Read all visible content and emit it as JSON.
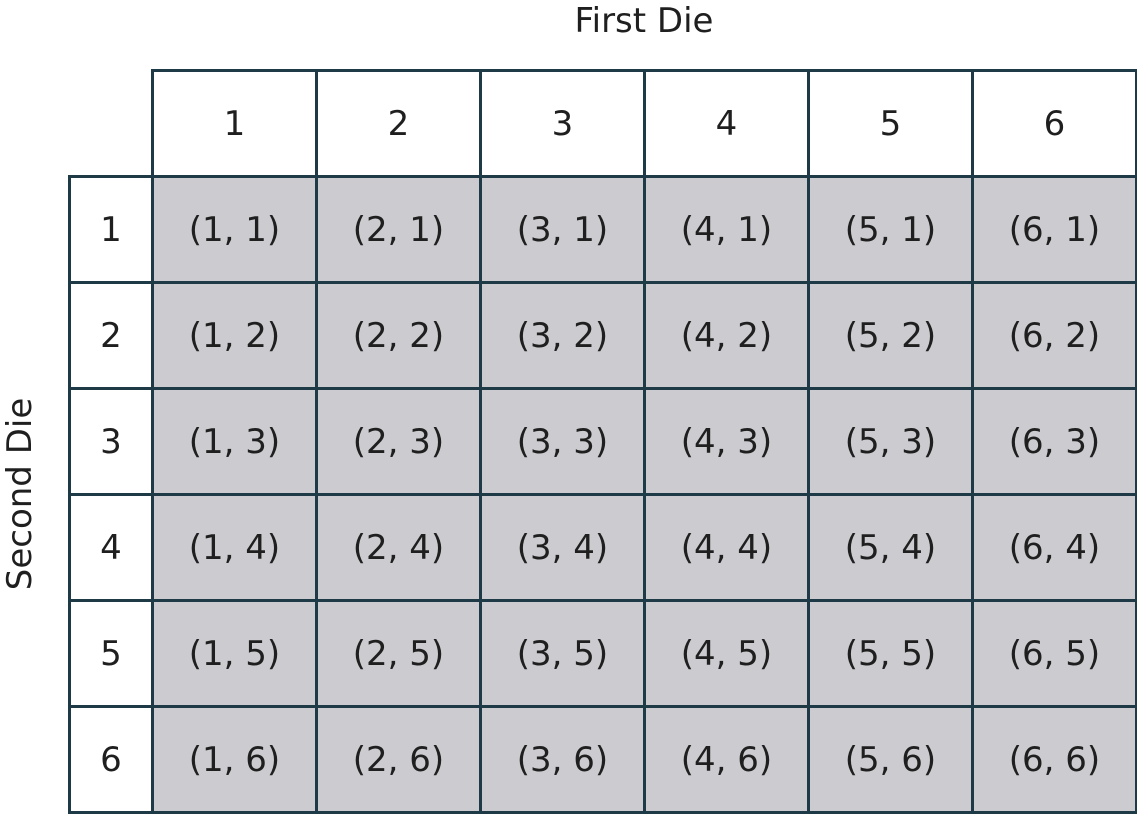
{
  "first_die_label": "First Die",
  "second_die_label": "Second Die",
  "column_headers": [
    "1",
    "2",
    "3",
    "4",
    "5",
    "6"
  ],
  "row_headers": [
    "1",
    "2",
    "3",
    "4",
    "5",
    "6"
  ],
  "outcomes": [
    [
      "(1, 1)",
      "(2, 1)",
      "(3, 1)",
      "(4, 1)",
      "(5, 1)",
      "(6, 1)"
    ],
    [
      "(1, 2)",
      "(2, 2)",
      "(3, 2)",
      "(4, 2)",
      "(5, 2)",
      "(6, 2)"
    ],
    [
      "(1, 3)",
      "(2, 3)",
      "(3, 3)",
      "(4, 3)",
      "(5, 3)",
      "(6, 3)"
    ],
    [
      "(1, 4)",
      "(2, 4)",
      "(3, 4)",
      "(4, 4)",
      "(5, 4)",
      "(6, 4)"
    ],
    [
      "(1, 5)",
      "(2, 5)",
      "(3, 5)",
      "(4, 5)",
      "(5, 5)",
      "(6, 5)"
    ],
    [
      "(1, 6)",
      "(2, 6)",
      "(3, 6)",
      "(4, 6)",
      "(5, 6)",
      "(6, 6)"
    ]
  ],
  "colors": {
    "grid_line": "#1f3a47",
    "outcome_fill": "#cbcbd0",
    "header_fill": "#ffffff"
  }
}
